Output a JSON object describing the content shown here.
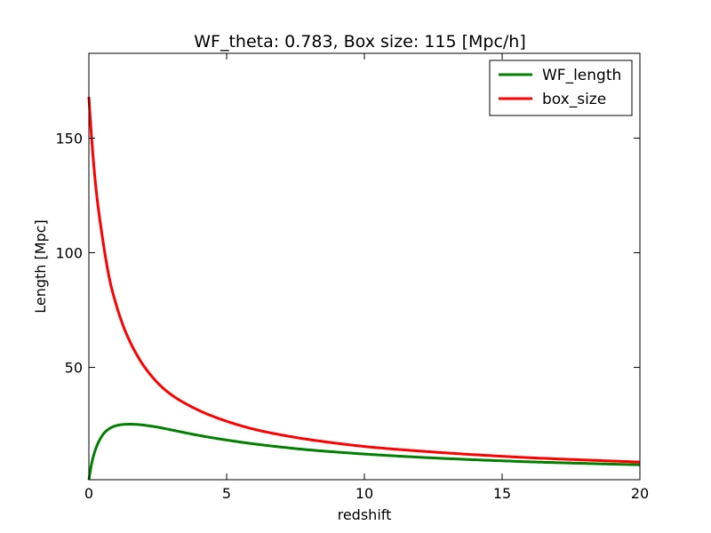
{
  "chart_data": {
    "type": "line",
    "title": "WF_theta: 0.783,  Box size: 115 [Mpc/h]",
    "xlabel": "redshift",
    "ylabel": "Length [Mpc]",
    "xlim": [
      0,
      20
    ],
    "ylim": [
      1,
      187
    ],
    "xticks": [
      0,
      5,
      10,
      15,
      20
    ],
    "yticks": [
      50,
      100,
      150
    ],
    "grid": false,
    "legend_position": "top-right",
    "series": [
      {
        "name": "WF_length",
        "color": "#008000",
        "x": [
          0.0,
          0.1,
          0.25,
          0.5,
          0.75,
          1.0,
          1.25,
          1.5,
          1.75,
          2.0,
          2.5,
          3.0,
          4.0,
          5.0,
          6.0,
          7.0,
          8.0,
          10.0,
          12.0,
          14.0,
          16.0,
          18.0,
          20.0
        ],
        "y": [
          1.0,
          8.0,
          14.5,
          20.5,
          23.3,
          24.6,
          25.1,
          25.2,
          25.1,
          24.8,
          23.9,
          22.7,
          20.3,
          18.3,
          16.6,
          15.2,
          14.0,
          12.2,
          10.8,
          9.7,
          8.8,
          8.1,
          7.5
        ]
      },
      {
        "name": "box_size",
        "color": "#ff0000",
        "x": [
          0.0,
          0.1,
          0.25,
          0.5,
          0.75,
          1.0,
          1.25,
          1.5,
          1.75,
          2.0,
          2.5,
          3.0,
          4.0,
          5.0,
          6.0,
          7.0,
          8.0,
          10.0,
          12.0,
          14.0,
          16.0,
          18.0,
          20.0
        ],
        "y": [
          168,
          150,
          129,
          106,
          88.5,
          77,
          68,
          61,
          55.3,
          50.5,
          43.2,
          38,
          31.2,
          26.5,
          23,
          20.5,
          18.5,
          15.5,
          13.5,
          11.9,
          10.6,
          9.6,
          8.7
        ]
      }
    ]
  }
}
